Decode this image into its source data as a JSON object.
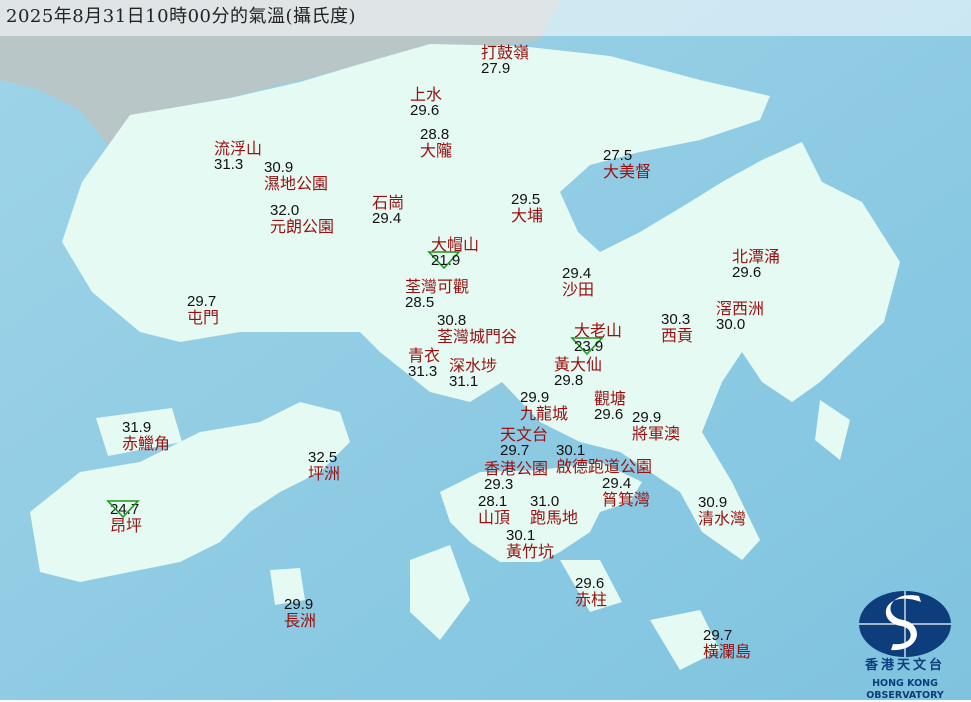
{
  "title": "2025年8月31日10時00分的氣溫(攝氏度)",
  "colors": {
    "sea": "#8fcbe3",
    "land": "#e4faf2",
    "station_name": "#9a1010",
    "value": "#111111",
    "marker": "#1a9a1a"
  },
  "stations": [
    {
      "name": "打鼓嶺",
      "value": "27.9"
    },
    {
      "name": "上水",
      "value": "29.6"
    },
    {
      "name": "大隴",
      "value": "28.8"
    },
    {
      "name": "流浮山",
      "value": "31.3"
    },
    {
      "name": "濕地公園",
      "value": "30.9"
    },
    {
      "name": "元朗公園",
      "value": "32.0"
    },
    {
      "name": "石崗",
      "value": "29.4"
    },
    {
      "name": "大美督",
      "value": "27.5"
    },
    {
      "name": "大埔",
      "value": "29.5"
    },
    {
      "name": "大帽山",
      "value": "21.9",
      "marker": "down-triangle"
    },
    {
      "name": "沙田",
      "value": "29.4"
    },
    {
      "name": "北潭涌",
      "value": "29.6"
    },
    {
      "name": "荃灣可觀",
      "value": "28.5"
    },
    {
      "name": "屯門",
      "value": "29.7"
    },
    {
      "name": "荃灣城門谷",
      "value": "30.8"
    },
    {
      "name": "西貢",
      "value": "30.3"
    },
    {
      "name": "滘西洲",
      "value": "30.0"
    },
    {
      "name": "大老山",
      "value": "23.9",
      "marker": "down-triangle"
    },
    {
      "name": "青衣",
      "value": "31.3"
    },
    {
      "name": "深水埗",
      "value": "31.1"
    },
    {
      "name": "黃大仙",
      "value": "29.8"
    },
    {
      "name": "九龍城",
      "value": "29.9"
    },
    {
      "name": "觀塘",
      "value": "29.6"
    },
    {
      "name": "將軍澳",
      "value": "29.9"
    },
    {
      "name": "天文台",
      "value": "29.7"
    },
    {
      "name": "啟德跑道公園",
      "value": "30.1"
    },
    {
      "name": "香港公園",
      "value": "29.3"
    },
    {
      "name": "筲箕灣",
      "value": "29.4"
    },
    {
      "name": "跑馬地",
      "value": "31.0"
    },
    {
      "name": "山頂",
      "value": "28.1"
    },
    {
      "name": "黃竹坑",
      "value": "30.1"
    },
    {
      "name": "清水灣",
      "value": "30.9"
    },
    {
      "name": "赤鱲角",
      "value": "31.9"
    },
    {
      "name": "坪洲",
      "value": "32.5"
    },
    {
      "name": "昂坪",
      "value": "24.7",
      "marker": "down-triangle"
    },
    {
      "name": "赤柱",
      "value": "29.6"
    },
    {
      "name": "長洲",
      "value": "29.9"
    },
    {
      "name": "橫瀾島",
      "value": "29.7"
    }
  ],
  "logo": {
    "zh": "香港天文台",
    "en": "HONG KONG OBSERVATORY"
  }
}
